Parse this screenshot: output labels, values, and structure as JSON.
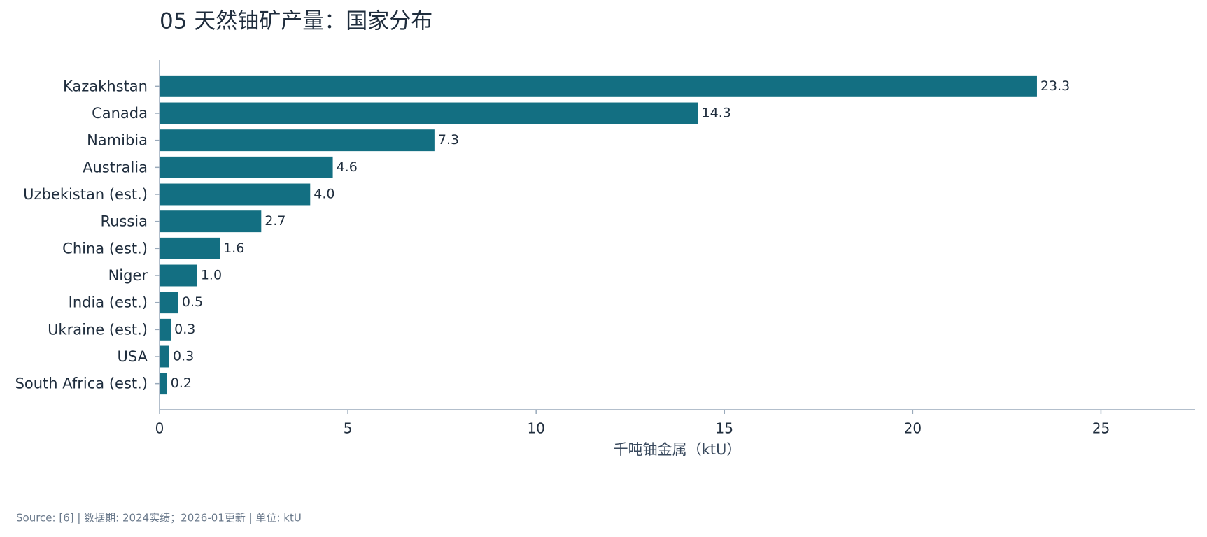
{
  "chart_data": {
    "type": "bar",
    "orientation": "horizontal",
    "title": "05  天然铀矿产量：国家分布",
    "categories": [
      "Kazakhstan",
      "Canada",
      "Namibia",
      "Australia",
      "Uzbekistan (est.)",
      "Russia",
      "China (est.)",
      "Niger",
      "India (est.)",
      "Ukraine (est.)",
      "USA",
      "South Africa (est.)"
    ],
    "values": [
      23.3,
      14.3,
      7.3,
      4.6,
      4.0,
      2.7,
      1.6,
      1.0,
      0.5,
      0.3,
      0.26,
      0.2
    ],
    "value_labels": [
      "23.3",
      "14.3",
      "7.3",
      "4.6",
      "4.0",
      "2.7",
      "1.6",
      "1.0",
      "0.5",
      "0.3",
      "0.3",
      "0.2"
    ],
    "color": "#136f82",
    "xlim": [
      0,
      27.5
    ],
    "xticks": [
      0,
      5,
      10,
      15,
      20,
      25
    ],
    "xlabel": "千吨铀金属（ktU）",
    "source": "Source: [6] | 数据期: 2024实绩；2026-01更新 | 单位: ktU",
    "grid": false
  }
}
